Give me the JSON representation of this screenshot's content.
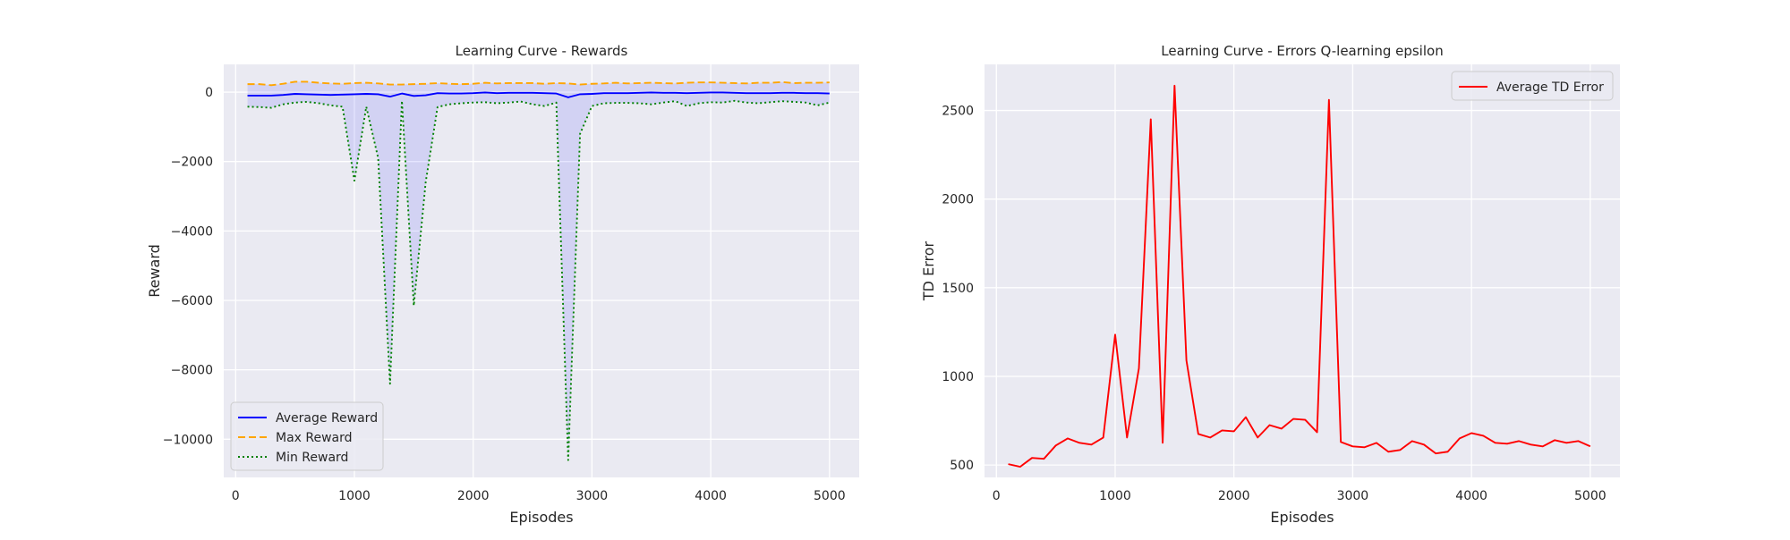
{
  "chart_data": [
    {
      "type": "line",
      "title": "Learning Curve - Rewards",
      "xlabel": "Episodes",
      "ylabel": "Reward",
      "xlim": [
        -100,
        5250
      ],
      "ylim": [
        -11100,
        800
      ],
      "xticks": [
        0,
        1000,
        2000,
        3000,
        4000,
        5000
      ],
      "xtick_labels": [
        "0",
        "1000",
        "2000",
        "3000",
        "4000",
        "5000"
      ],
      "yticks": [
        0,
        -2000,
        -4000,
        -6000,
        -8000,
        -10000
      ],
      "ytick_labels": [
        "0",
        "−2000",
        "−4000",
        "−6000",
        "−8000",
        "−10000"
      ],
      "grid": true,
      "legend_position": "bottom-left",
      "fill_between": {
        "upper": "Max Reward",
        "lower": "Min Reward",
        "color": "#0000ff",
        "opacity": 0.1
      },
      "x": [
        100,
        200,
        300,
        400,
        500,
        600,
        700,
        800,
        900,
        1000,
        1100,
        1200,
        1300,
        1400,
        1500,
        1600,
        1700,
        1800,
        1900,
        2000,
        2100,
        2200,
        2300,
        2400,
        2500,
        2600,
        2700,
        2800,
        2900,
        3000,
        3100,
        3200,
        3300,
        3400,
        3500,
        3600,
        3700,
        3800,
        3900,
        4000,
        4100,
        4200,
        4300,
        4400,
        4500,
        4600,
        4700,
        4800,
        4900,
        5000
      ],
      "series": [
        {
          "name": "Average Reward",
          "color": "#0000ff",
          "style": "solid",
          "values": [
            -100,
            -100,
            -100,
            -80,
            -50,
            -60,
            -70,
            -80,
            -70,
            -60,
            -50,
            -60,
            -130,
            -40,
            -110,
            -90,
            -30,
            -40,
            -40,
            -30,
            -10,
            -30,
            -20,
            -20,
            -20,
            -30,
            -40,
            -150,
            -60,
            -50,
            -30,
            -30,
            -30,
            -20,
            -10,
            -20,
            -20,
            -30,
            -20,
            -10,
            -10,
            -20,
            -30,
            -30,
            -30,
            -20,
            -20,
            -30,
            -30,
            -40
          ]
        },
        {
          "name": "Max Reward",
          "color": "#ffa500",
          "style": "dashed",
          "values": [
            230,
            230,
            200,
            240,
            300,
            300,
            270,
            250,
            240,
            260,
            270,
            250,
            220,
            220,
            230,
            240,
            260,
            240,
            230,
            240,
            270,
            250,
            260,
            260,
            260,
            240,
            260,
            250,
            220,
            240,
            250,
            270,
            250,
            260,
            270,
            260,
            250,
            270,
            280,
            280,
            270,
            260,
            250,
            270,
            270,
            290,
            260,
            270,
            270,
            280
          ]
        },
        {
          "name": "Min Reward",
          "color": "#008000",
          "style": "dotted",
          "values": [
            -420,
            -430,
            -450,
            -350,
            -300,
            -280,
            -320,
            -380,
            -420,
            -2550,
            -420,
            -1900,
            -8400,
            -250,
            -6150,
            -2600,
            -430,
            -350,
            -320,
            -300,
            -290,
            -320,
            -300,
            -270,
            -350,
            -400,
            -300,
            -10600,
            -1200,
            -400,
            -320,
            -310,
            -310,
            -320,
            -350,
            -300,
            -260,
            -400,
            -320,
            -290,
            -300,
            -250,
            -300,
            -320,
            -290,
            -260,
            -280,
            -300,
            -380,
            -300
          ]
        }
      ]
    },
    {
      "type": "line",
      "title": "Learning Curve - Errors Q-learning epsilon",
      "xlabel": "Episodes",
      "ylabel": "TD Error",
      "xlim": [
        -100,
        5250
      ],
      "ylim": [
        430,
        2760
      ],
      "xticks": [
        0,
        1000,
        2000,
        3000,
        4000,
        5000
      ],
      "xtick_labels": [
        "0",
        "1000",
        "2000",
        "3000",
        "4000",
        "5000"
      ],
      "yticks": [
        500,
        1000,
        1500,
        2000,
        2500
      ],
      "ytick_labels": [
        "500",
        "1000",
        "1500",
        "2000",
        "2500"
      ],
      "grid": true,
      "legend_position": "top-right",
      "x": [
        100,
        200,
        300,
        400,
        500,
        600,
        700,
        800,
        900,
        1000,
        1100,
        1200,
        1300,
        1400,
        1500,
        1600,
        1700,
        1800,
        1900,
        2000,
        2100,
        2200,
        2300,
        2400,
        2500,
        2600,
        2700,
        2800,
        2900,
        3000,
        3100,
        3200,
        3300,
        3400,
        3500,
        3600,
        3700,
        3800,
        3900,
        4000,
        4100,
        4200,
        4300,
        4400,
        4500,
        4600,
        4700,
        4800,
        4900,
        5000
      ],
      "series": [
        {
          "name": "Average TD Error",
          "color": "#ff0000",
          "style": "solid",
          "values": [
            505,
            490,
            540,
            535,
            610,
            650,
            625,
            615,
            655,
            1235,
            655,
            1045,
            2450,
            625,
            2640,
            1090,
            675,
            655,
            695,
            690,
            770,
            655,
            725,
            705,
            760,
            755,
            685,
            2560,
            630,
            605,
            600,
            625,
            575,
            585,
            635,
            615,
            565,
            575,
            650,
            680,
            665,
            625,
            620,
            635,
            615,
            605,
            640,
            625,
            635,
            605
          ]
        }
      ]
    }
  ]
}
